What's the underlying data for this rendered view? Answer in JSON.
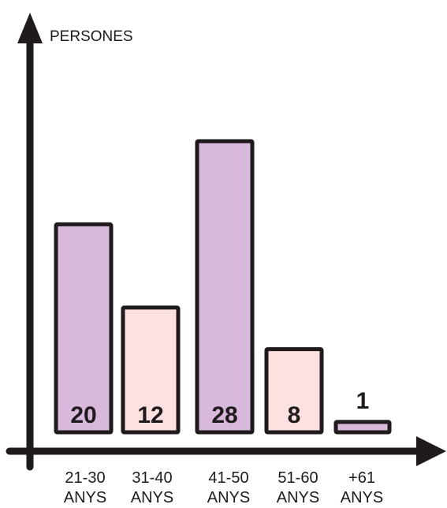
{
  "chart_data": {
    "type": "bar",
    "title": "",
    "xlabel": "",
    "ylabel": "PERSONES",
    "categories": [
      [
        "21-30",
        "ANYS"
      ],
      [
        "31-40",
        "ANYS"
      ],
      [
        "41-50",
        "ANYS"
      ],
      [
        "51-60",
        "ANYS"
      ],
      [
        "+61",
        "ANYS"
      ]
    ],
    "values": [
      20,
      12,
      28,
      8,
      1
    ],
    "data_labels": [
      "20",
      "12",
      "28",
      "8",
      "1"
    ],
    "ylim": [
      0,
      28
    ],
    "grid": false,
    "legend": "none"
  },
  "colors": {
    "bar_odd": "#d8b9dc",
    "bar_even": "#fde1e1",
    "bar_last": "#d8b9dc",
    "stroke": "#1f1a1c",
    "text": "#1f1a1c",
    "background": "#ffffff"
  }
}
